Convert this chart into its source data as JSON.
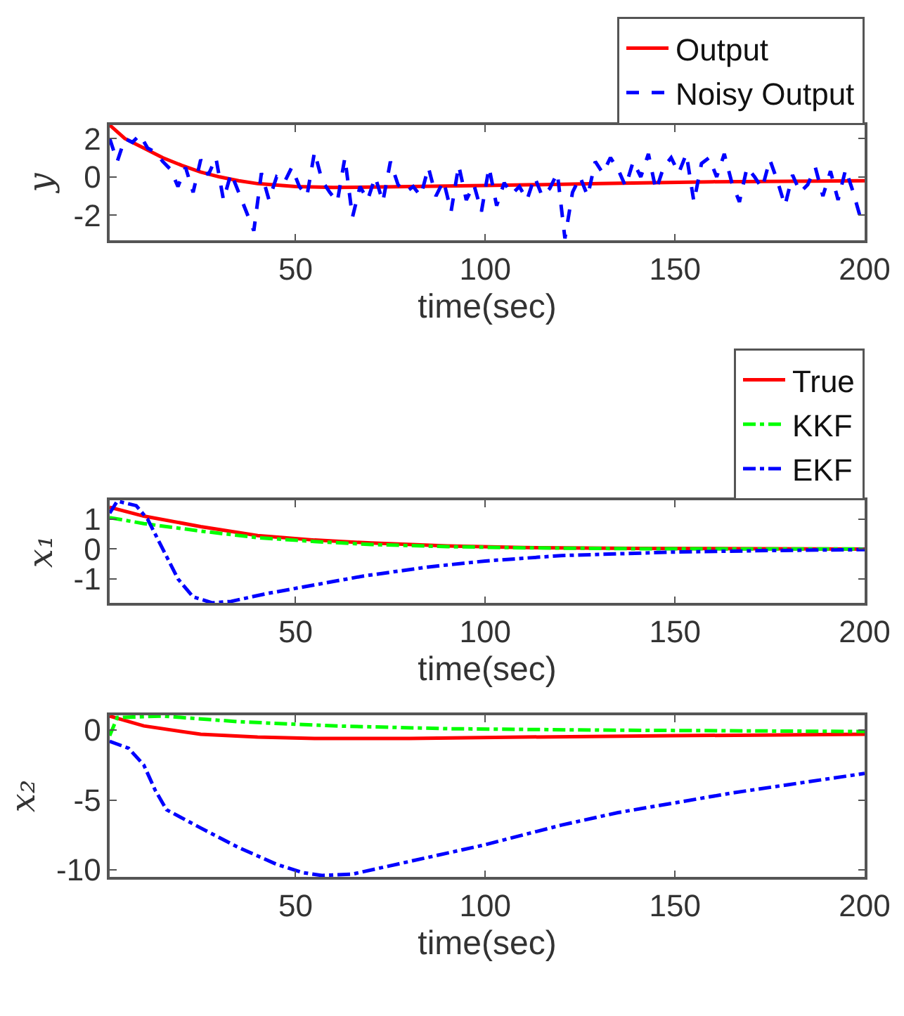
{
  "chart_data": [
    {
      "type": "line",
      "xlabel": "time(sec)",
      "ylabel": "y",
      "xlim": [
        1,
        200
      ],
      "xticks": [
        50,
        100,
        150,
        200
      ],
      "ylim": [
        -3.3,
        2.7
      ],
      "yticks": [
        -2,
        0,
        2
      ],
      "grid": false,
      "legend": "top right",
      "series": [
        {
          "name": "Output",
          "color": "#ff0000",
          "line_style": "solid",
          "x": [
            1,
            5,
            10,
            15,
            20,
            25,
            30,
            35,
            40,
            50,
            60,
            80,
            100,
            130,
            160,
            200
          ],
          "values": [
            2.7,
            2.0,
            1.5,
            1.0,
            0.6,
            0.25,
            0.0,
            -0.2,
            -0.35,
            -0.5,
            -0.55,
            -0.5,
            -0.45,
            -0.35,
            -0.25,
            -0.2
          ]
        },
        {
          "name": "Noisy Output",
          "color": "#0000ff",
          "line_style": "dashed",
          "x": [
            1,
            3,
            5,
            7,
            9,
            11,
            13,
            15,
            17,
            19,
            21,
            23,
            25,
            27,
            29,
            31,
            33,
            35,
            37,
            39,
            41,
            43,
            45,
            47,
            49,
            51,
            53,
            55,
            57,
            59,
            61,
            63,
            65,
            67,
            69,
            71,
            73,
            75,
            77,
            79,
            81,
            83,
            85,
            87,
            89,
            91,
            93,
            95,
            97,
            99,
            101,
            103,
            105,
            107,
            109,
            111,
            113,
            115,
            117,
            119,
            121,
            123,
            125,
            127,
            129,
            131,
            133,
            135,
            137,
            139,
            141,
            143,
            145,
            147,
            149,
            151,
            153,
            155,
            157,
            159,
            161,
            163,
            165,
            167,
            169,
            171,
            173,
            175,
            177,
            179,
            181,
            183,
            185,
            187,
            189,
            191,
            193,
            195,
            197,
            199
          ],
          "values": [
            2.0,
            0.8,
            2.0,
            1.8,
            2.2,
            1.5,
            1.3,
            0.8,
            0.4,
            -0.5,
            0.5,
            -0.8,
            0.9,
            0.1,
            1.0,
            -1.2,
            0.2,
            -0.8,
            -1.8,
            -2.8,
            0.2,
            -1.2,
            0.0,
            -0.3,
            0.5,
            -0.5,
            -1.0,
            1.3,
            -0.2,
            -0.8,
            -1.3,
            1.0,
            -2.1,
            -0.5,
            -1.2,
            0.0,
            -1.3,
            0.8,
            -0.4,
            -0.8,
            -0.5,
            -1.0,
            0.5,
            -1.0,
            -0.2,
            -1.8,
            0.6,
            -1.2,
            -0.4,
            -1.8,
            0.5,
            -1.5,
            -0.3,
            -0.9,
            -0.5,
            -1.2,
            0.0,
            -1.0,
            -0.6,
            0.2,
            -3.2,
            -0.8,
            0.0,
            -1.0,
            0.8,
            0.2,
            1.0,
            0.4,
            -0.5,
            0.8,
            0.0,
            1.2,
            -0.7,
            0.5,
            1.0,
            0.2,
            1.2,
            -1.3,
            0.7,
            1.0,
            0.0,
            1.2,
            -0.3,
            -1.3,
            0.5,
            0.0,
            -0.6,
            0.9,
            -0.2,
            -1.5,
            0.1,
            -0.8,
            -0.4,
            0.5,
            -1.0,
            0.3,
            -1.2,
            0.4,
            -0.8,
            -2.2
          ]
        }
      ]
    },
    {
      "type": "line",
      "xlabel": "time(sec)",
      "ylabel": "x₁",
      "xlim": [
        1,
        200
      ],
      "xticks": [
        50,
        100,
        150,
        200
      ],
      "ylim": [
        -1.8,
        1.63
      ],
      "yticks": [
        -1,
        0,
        1
      ],
      "grid": false,
      "legend": "top right",
      "series": [
        {
          "name": "True",
          "color": "#ff0000",
          "line_style": "solid",
          "x": [
            1,
            10,
            25,
            40,
            55,
            70,
            90,
            110,
            140,
            200
          ],
          "values": [
            1.4,
            1.1,
            0.75,
            0.45,
            0.3,
            0.2,
            0.1,
            0.05,
            0.02,
            0.0
          ]
        },
        {
          "name": "KKF",
          "color": "#00ff00",
          "line_style": "dashdot",
          "x": [
            1,
            10,
            25,
            40,
            55,
            70,
            90,
            110,
            140,
            200
          ],
          "values": [
            1.05,
            0.85,
            0.6,
            0.38,
            0.25,
            0.15,
            0.08,
            0.04,
            0.01,
            0.0
          ]
        },
        {
          "name": "EKF",
          "color": "#0000ff",
          "line_style": "dashdot",
          "x": [
            1,
            3,
            8,
            11,
            15,
            19,
            23,
            28,
            33,
            42,
            55,
            68,
            85,
            100,
            120,
            150,
            175,
            200
          ],
          "values": [
            1.2,
            1.6,
            1.45,
            1.0,
            0.0,
            -1.0,
            -1.6,
            -1.8,
            -1.75,
            -1.5,
            -1.2,
            -0.9,
            -0.6,
            -0.4,
            -0.22,
            -0.1,
            -0.05,
            -0.02
          ]
        }
      ]
    },
    {
      "type": "line",
      "xlabel": "time(sec)",
      "ylabel": "x₂",
      "xlim": [
        1,
        200
      ],
      "xticks": [
        50,
        100,
        150,
        200
      ],
      "ylim": [
        -10.5,
        1.06
      ],
      "yticks": [
        -10,
        -5,
        0
      ],
      "grid": false,
      "legend": false,
      "series": [
        {
          "color": "#ff0000",
          "line_style": "solid",
          "x": [
            1,
            10,
            25,
            40,
            55,
            80,
            110,
            150,
            200
          ],
          "values": [
            1.0,
            0.3,
            -0.3,
            -0.5,
            -0.6,
            -0.6,
            -0.5,
            -0.4,
            -0.3
          ]
        },
        {
          "color": "#00ff00",
          "line_style": "dashdot",
          "x": [
            1,
            3,
            15,
            35,
            60,
            90,
            130,
            200
          ],
          "values": [
            -0.4,
            0.9,
            1.0,
            0.6,
            0.3,
            0.1,
            0.0,
            -0.1
          ]
        },
        {
          "color": "#0000ff",
          "line_style": "dashdot",
          "x": [
            1,
            6,
            10,
            13,
            16,
            25,
            35,
            45,
            52,
            57,
            65,
            75,
            90,
            100,
            120,
            135,
            150,
            165,
            180,
            200
          ],
          "values": [
            -0.8,
            -1.3,
            -2.5,
            -4.3,
            -5.7,
            -7.0,
            -8.4,
            -9.6,
            -10.2,
            -10.4,
            -10.3,
            -9.7,
            -8.8,
            -8.2,
            -6.8,
            -5.9,
            -5.2,
            -4.5,
            -3.9,
            -3.1
          ]
        }
      ]
    }
  ]
}
